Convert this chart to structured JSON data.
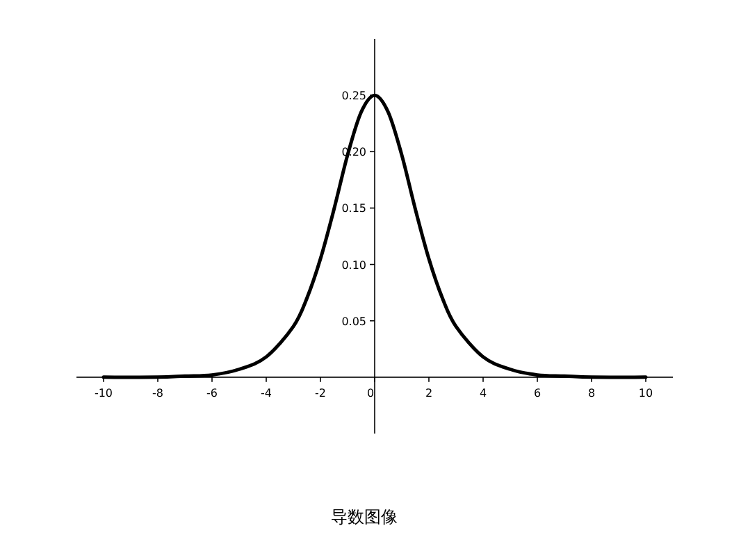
{
  "chart_data": {
    "type": "line",
    "title": "导数图像",
    "x": [
      -10,
      -8,
      -7,
      -6,
      -5,
      -4,
      -3,
      -2.5,
      -2,
      -1.5,
      -1,
      -0.5,
      0,
      0.5,
      1,
      1.5,
      2,
      2.5,
      3,
      4,
      5,
      6,
      7,
      8,
      10
    ],
    "series": [
      {
        "color": "#000000",
        "values": [
          0.0,
          0.0,
          0.001,
          0.002,
          0.007,
          0.018,
          0.045,
          0.07,
          0.105,
          0.149,
          0.197,
          0.235,
          0.25,
          0.235,
          0.197,
          0.149,
          0.105,
          0.07,
          0.045,
          0.018,
          0.007,
          0.002,
          0.001,
          0.0,
          0.0
        ]
      }
    ],
    "xlim": [
      -11,
      11
    ],
    "ylim": [
      -0.05,
      0.3
    ],
    "xticks": [
      -10,
      -8,
      -6,
      -4,
      -2,
      0,
      2,
      4,
      6,
      8,
      10
    ],
    "yticks": [
      0.05,
      {
        "value": 0.1,
        "label": "0.10"
      },
      0.15,
      {
        "value": 0.2,
        "label": "0.20"
      },
      0.25
    ],
    "grid": false,
    "marker": "none",
    "line_style": "solid"
  }
}
